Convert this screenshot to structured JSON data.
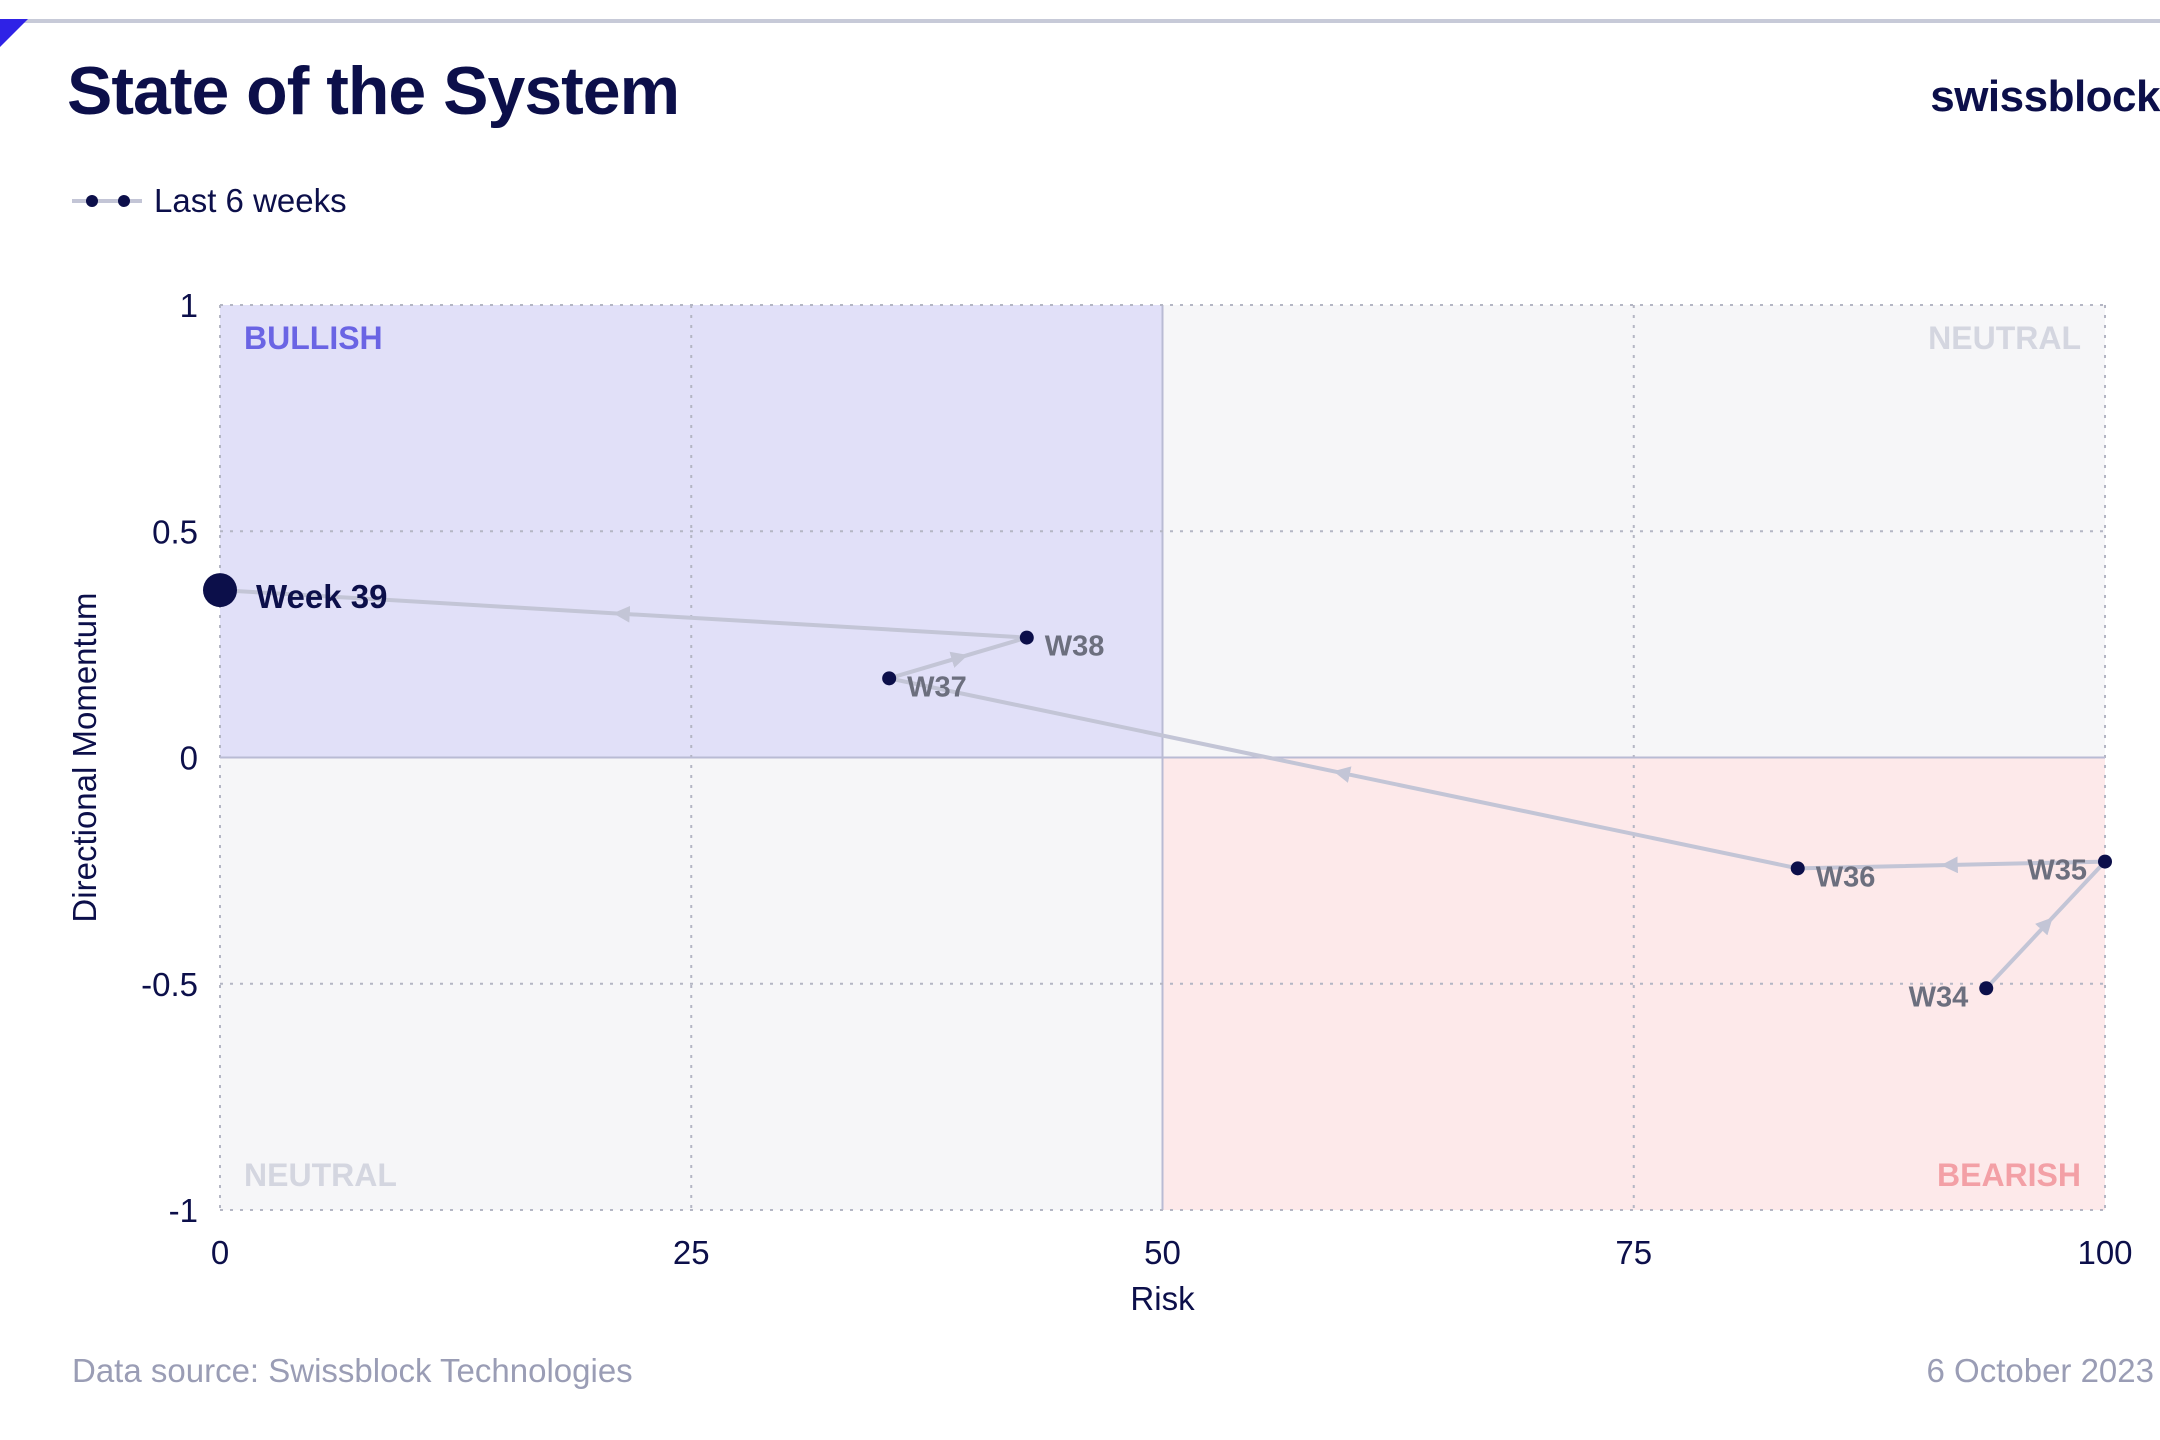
{
  "header": {
    "title": "State of the System",
    "brand": "swissblock"
  },
  "legend": {
    "label": "Last 6 weeks"
  },
  "footer": {
    "source": "Data source: Swissblock Technologies",
    "date": "6 October 2023"
  },
  "colors": {
    "bullish_fill": "#e1e0f8",
    "bearish_fill": "#fde9ea",
    "neutral_fill": "#f6f6f8",
    "bullish_text": "#6a64e4",
    "bearish_text": "#f3a0a6",
    "neutral_text": "#d4d6e0",
    "path": "#c3c5d6",
    "point": "#0c0f4a"
  },
  "chart_data": {
    "type": "scatter",
    "xlabel": "Risk",
    "ylabel": "Directional Momentum",
    "xlim": [
      0,
      100
    ],
    "ylim": [
      -1,
      1
    ],
    "xticks": [
      0,
      25,
      50,
      75,
      100
    ],
    "yticks": [
      -1,
      -0.5,
      0,
      0.5,
      1
    ],
    "ytick_labels": [
      "-1",
      "-0.5",
      "0",
      "0.5",
      "1"
    ],
    "xtick_labels": [
      "0",
      "25",
      "50",
      "75",
      "100"
    ],
    "grid": true,
    "quadrants": {
      "top_left": "BULLISH",
      "top_right": "NEUTRAL",
      "bottom_left": "NEUTRAL",
      "bottom_right": "BEARISH"
    },
    "series": [
      {
        "name": "Last 6 weeks",
        "points": [
          {
            "label": "W34",
            "x": 93.7,
            "y": -0.51
          },
          {
            "label": "W35",
            "x": 100,
            "y": -0.23
          },
          {
            "label": "W36",
            "x": 83.7,
            "y": -0.245
          },
          {
            "label": "W37",
            "x": 35.5,
            "y": 0.175
          },
          {
            "label": "W38",
            "x": 42.8,
            "y": 0.265
          },
          {
            "label": "Week 39",
            "x": 0,
            "y": 0.37
          }
        ]
      }
    ]
  }
}
